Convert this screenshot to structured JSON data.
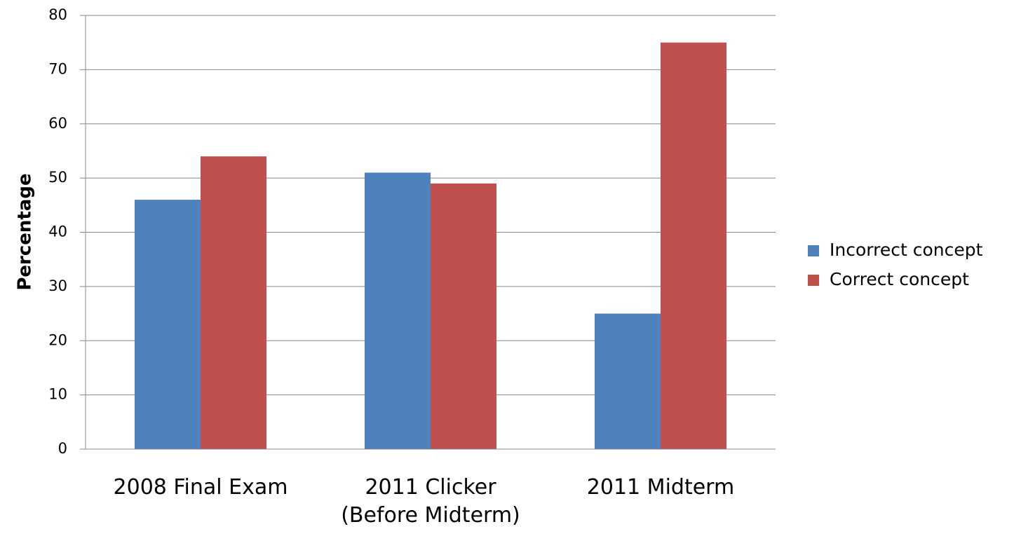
{
  "chart_data": {
    "type": "bar",
    "y_label": "Percentage",
    "categories": [
      "2008 Final Exam",
      "2011 Clicker\n(Before Midterm)",
      "2011 Midterm"
    ],
    "series": [
      {
        "name": "Incorrect concept",
        "color": "#4f81bd",
        "values": [
          46,
          51,
          25
        ]
      },
      {
        "name": "Correct concept",
        "color": "#c0504d",
        "values": [
          54,
          49,
          75
        ]
      }
    ],
    "ylim": [
      0,
      80
    ],
    "yticks": [
      0,
      10,
      20,
      30,
      40,
      50,
      60,
      70,
      80
    ],
    "grid": true,
    "legend": "right"
  }
}
